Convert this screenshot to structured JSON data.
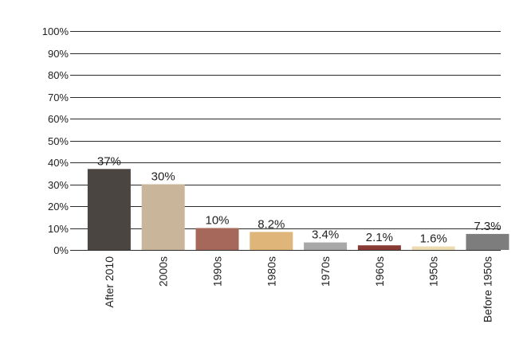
{
  "chart_data": {
    "type": "bar",
    "title": "",
    "xlabel": "",
    "ylabel": "",
    "ylim": [
      0,
      100
    ],
    "yticks": [
      0,
      10,
      20,
      30,
      40,
      50,
      60,
      70,
      80,
      90,
      100
    ],
    "ytick_labels": [
      "0%",
      "10%",
      "20%",
      "30%",
      "40%",
      "50%",
      "60%",
      "70%",
      "80%",
      "90%",
      "100%"
    ],
    "grid": true,
    "legend": "none",
    "categories": [
      "After 2010",
      "2000s",
      "1990s",
      "1980s",
      "1970s",
      "1960s",
      "1950s",
      "Before 1950s"
    ],
    "values": [
      37,
      30,
      10,
      8.2,
      3.4,
      2.1,
      1.6,
      7.3
    ],
    "value_labels": [
      "37%",
      "30%",
      "10%",
      "8.2%",
      "3.4%",
      "2.1%",
      "1.6%",
      "7.3%"
    ],
    "colors": [
      "#4a4541",
      "#c9b69a",
      "#a6685a",
      "#dfb57a",
      "#a8a8a8",
      "#8a3a34",
      "#eddcb2",
      "#7d7d7d"
    ]
  }
}
